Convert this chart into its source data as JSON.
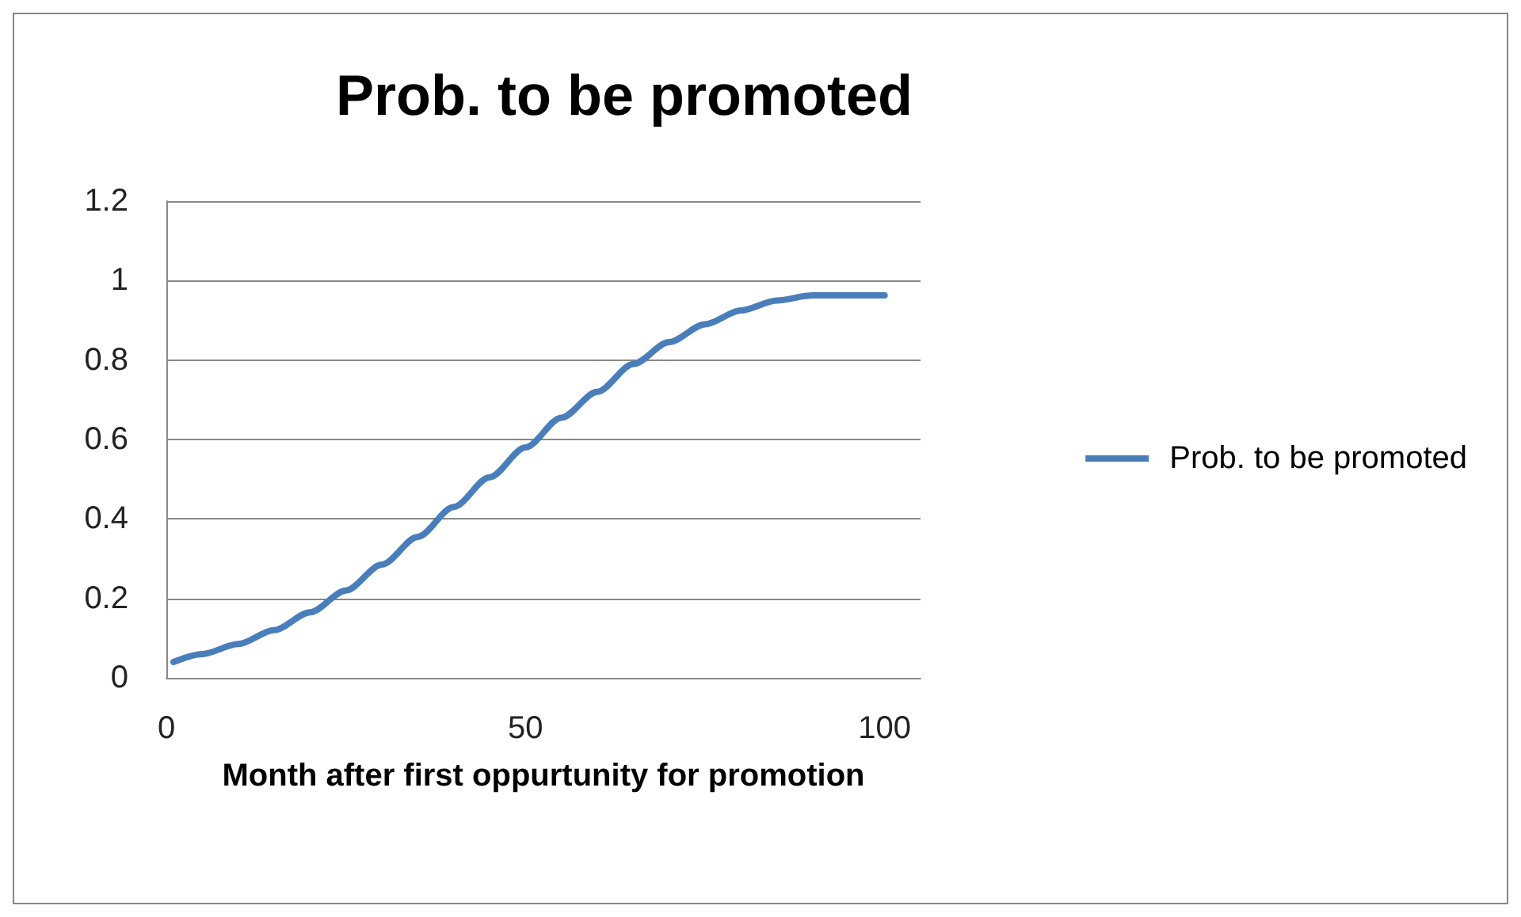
{
  "chart_data": {
    "type": "line",
    "title": "Prob. to be promoted",
    "xlabel": "Month after first oppurtunity for promotion",
    "x": [
      1,
      5,
      10,
      15,
      20,
      25,
      30,
      35,
      40,
      45,
      50,
      55,
      60,
      65,
      70,
      75,
      80,
      85,
      90,
      100
    ],
    "series": [
      {
        "name": "Prob. to be promoted",
        "color": "#4a7ebb",
        "values": [
          0.04,
          0.06,
          0.085,
          0.12,
          0.165,
          0.22,
          0.285,
          0.355,
          0.43,
          0.505,
          0.58,
          0.655,
          0.72,
          0.79,
          0.845,
          0.89,
          0.925,
          0.95,
          0.963,
          0.963
        ]
      }
    ],
    "xlim": [
      0,
      105
    ],
    "xticks": [
      0,
      50,
      100
    ],
    "ylim": [
      0,
      1.2
    ],
    "yticks": [
      0,
      0.2,
      0.4,
      0.6,
      0.8,
      1,
      1.2
    ],
    "grid": "y",
    "legend": "right",
    "marker": "none",
    "line_style": "solid"
  }
}
